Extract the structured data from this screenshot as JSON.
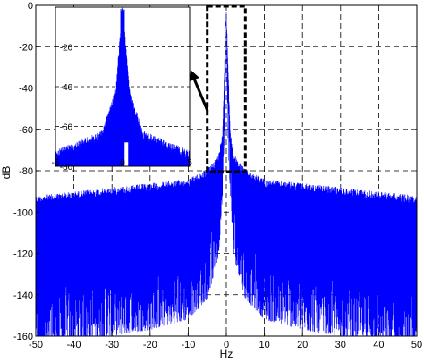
{
  "chart_data": {
    "type": "line",
    "title": "",
    "xlabel": "Hz",
    "ylabel": "dB",
    "xlim": [
      -50,
      50
    ],
    "ylim": [
      -160,
      0
    ],
    "xticks": [
      -50,
      -40,
      -30,
      -20,
      -10,
      0,
      10,
      20,
      30,
      40,
      50
    ],
    "yticks": [
      0,
      -20,
      -40,
      -60,
      -80,
      -100,
      -120,
      -140,
      -160
    ],
    "grid": true,
    "grid_style": "dashed",
    "series": [
      {
        "color": "#0000ff",
        "description_points": [
          {
            "x": -50,
            "upper": -92,
            "lower": -158
          },
          {
            "x": -40,
            "upper": -90,
            "lower": -150
          },
          {
            "x": -30,
            "upper": -88,
            "lower": -148
          },
          {
            "x": -20,
            "upper": -86,
            "lower": -145
          },
          {
            "x": -10,
            "upper": -84,
            "lower": -140
          },
          {
            "x": -5,
            "upper": -79,
            "lower": -130
          },
          {
            "x": -2,
            "upper": -72,
            "lower": -110
          },
          {
            "x": -1,
            "upper": -60,
            "lower": -80
          },
          {
            "x": -0.5,
            "upper": -30,
            "lower": -60
          },
          {
            "x": 0,
            "upper": 0,
            "lower": -5
          },
          {
            "x": 0.5,
            "upper": -30,
            "lower": -60
          },
          {
            "x": 1,
            "upper": -60,
            "lower": -80
          },
          {
            "x": 2,
            "upper": -72,
            "lower": -110
          },
          {
            "x": 5,
            "upper": -79,
            "lower": -130
          },
          {
            "x": 10,
            "upper": -84,
            "lower": -140
          },
          {
            "x": 20,
            "upper": -86,
            "lower": -145
          },
          {
            "x": 30,
            "upper": -88,
            "lower": -148
          },
          {
            "x": 40,
            "upper": -90,
            "lower": -150
          },
          {
            "x": 50,
            "upper": -92,
            "lower": -158
          }
        ]
      }
    ],
    "zoom_box": {
      "xlim": [
        -5,
        5
      ],
      "ylim": [
        -80,
        0
      ]
    },
    "inset": {
      "xlim": [
        -5,
        5
      ],
      "ylim": [
        -80,
        0
      ],
      "xtick_labels": [
        "-5",
        "0",
        "5"
      ],
      "ytick_labels": [
        "-20",
        "-40",
        "-60",
        "-80"
      ]
    }
  }
}
